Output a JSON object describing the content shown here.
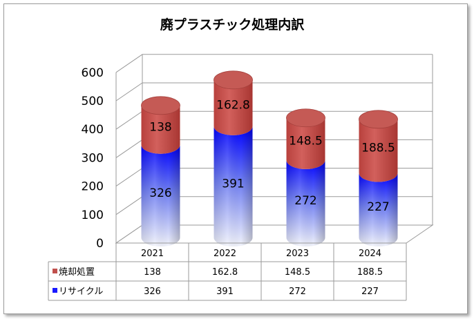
{
  "chart_data": {
    "type": "bar",
    "style": "stacked-3d-cylinder",
    "title": "廃プラスチック処理内訳",
    "categories": [
      "2021",
      "2022",
      "2023",
      "2024"
    ],
    "series": [
      {
        "name": "リサイクル",
        "values": [
          326,
          391,
          272,
          227
        ],
        "color": "#1a1aff",
        "labels": [
          "326",
          "391",
          "272",
          "227"
        ]
      },
      {
        "name": "焼却処置",
        "values": [
          138,
          162.8,
          148.5,
          188.5
        ],
        "color": "#c0504d",
        "labels": [
          "138",
          "162.8",
          "148.5",
          "188.5"
        ]
      }
    ],
    "yticks": [
      "0",
      "100",
      "200",
      "300",
      "400",
      "500",
      "600"
    ],
    "ylim": [
      0,
      600
    ],
    "grid": true,
    "legend": "data-table-below",
    "xlabel": "",
    "ylabel": ""
  }
}
